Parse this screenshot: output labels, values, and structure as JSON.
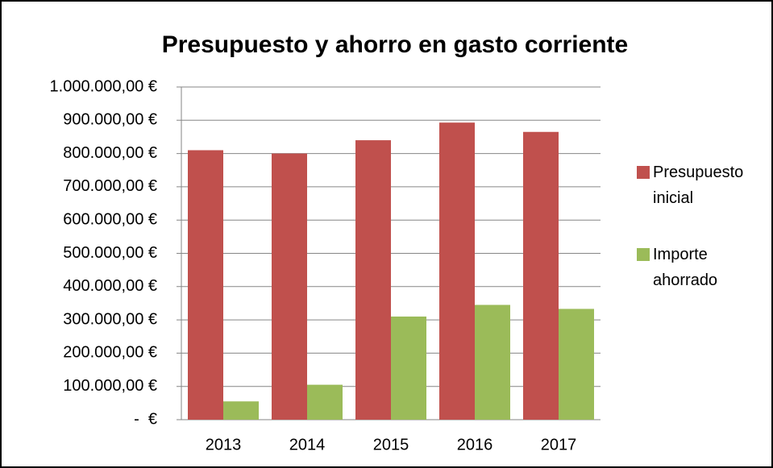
{
  "chart_data": {
    "type": "bar",
    "title": "Presupuesto y ahorro en gasto corriente",
    "categories": [
      "2013",
      "2014",
      "2015",
      "2016",
      "2017"
    ],
    "series": [
      {
        "name": "Presupuesto inicial",
        "color": "#c0504d",
        "values": [
          810000,
          800000,
          840000,
          893000,
          865000
        ]
      },
      {
        "name": "Importe ahorrado",
        "color": "#9bbb59",
        "values": [
          55000,
          105000,
          310000,
          345000,
          333000
        ]
      }
    ],
    "ylim": [
      0,
      1000000
    ],
    "yticks": [
      {
        "value": 0,
        "label": "-  €"
      },
      {
        "value": 100000,
        "label": "100.000,00 €"
      },
      {
        "value": 200000,
        "label": "200.000,00 €"
      },
      {
        "value": 300000,
        "label": "300.000,00 €"
      },
      {
        "value": 400000,
        "label": "400.000,00 €"
      },
      {
        "value": 500000,
        "label": "500.000,00 €"
      },
      {
        "value": 600000,
        "label": "600.000,00 €"
      },
      {
        "value": 700000,
        "label": "700.000,00 €"
      },
      {
        "value": 800000,
        "label": "800.000,00 €"
      },
      {
        "value": 900000,
        "label": "900.000,00 €"
      },
      {
        "value": 1000000,
        "label": "1.000.000,00 €"
      }
    ],
    "grid": true,
    "legend": "right"
  }
}
